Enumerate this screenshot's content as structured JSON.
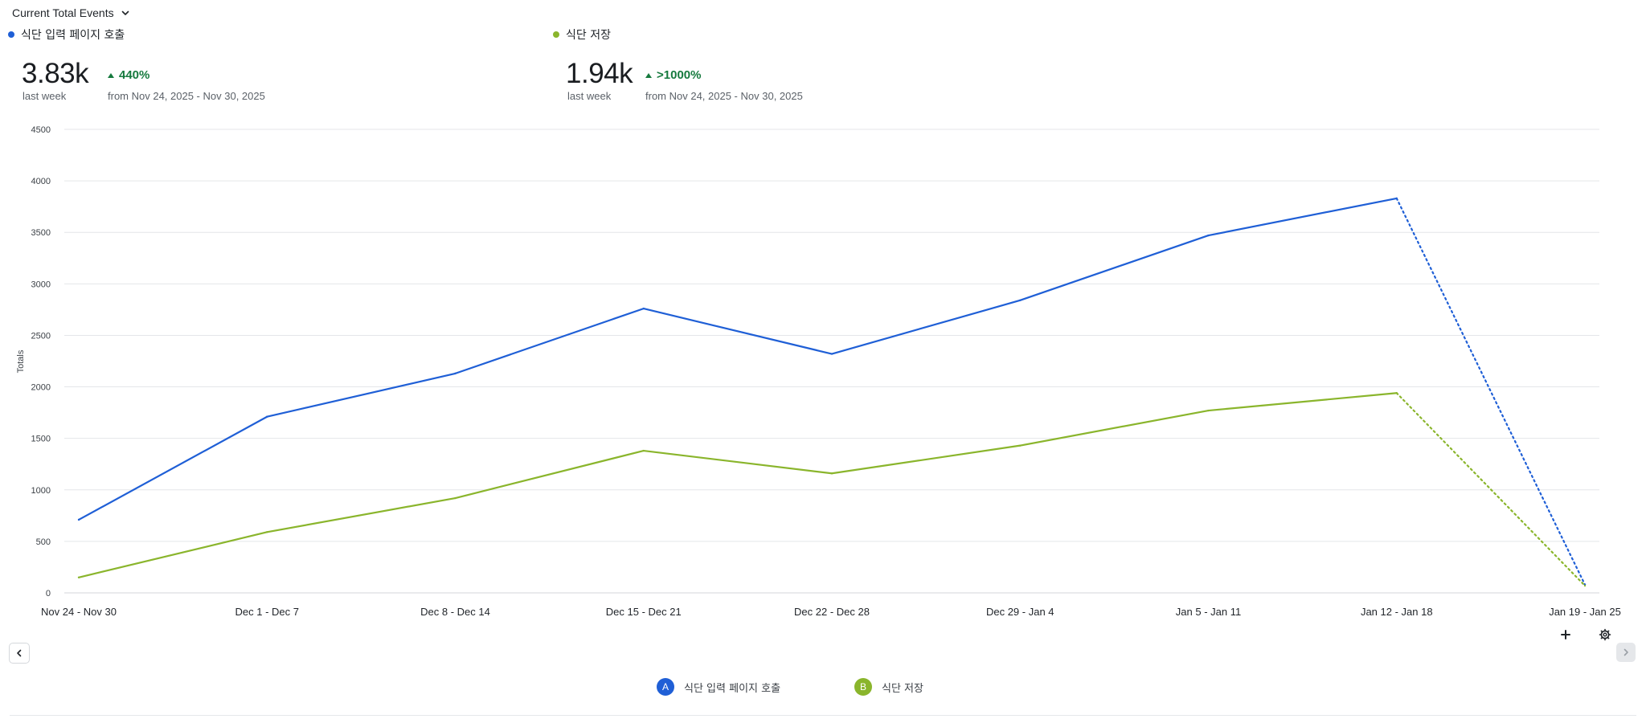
{
  "metric_selector": {
    "label": "Current Total Events"
  },
  "colors": {
    "series_a": "#1f5fd6",
    "series_b": "#8ab52c",
    "up": "#167a3e",
    "grid": "#e4e6e9"
  },
  "summary": [
    {
      "name": "식단 입력 페이지 호출",
      "value": "3.83k",
      "period": "last week",
      "change": "440%",
      "range": "from Nov 24, 2025 - Nov 30, 2025"
    },
    {
      "name": "식단 저장",
      "value": "1.94k",
      "period": "last week",
      "change": ">1000%",
      "range": "from Nov 24, 2025 - Nov 30, 2025"
    }
  ],
  "legend": [
    {
      "badge": "A",
      "label": "식단 입력 페이지 호출"
    },
    {
      "badge": "B",
      "label": "식단 저장"
    }
  ],
  "chart_data": {
    "type": "line",
    "ylabel": "Totals",
    "ylim": [
      0,
      4500
    ],
    "yticks": [
      0,
      500,
      1000,
      1500,
      2000,
      2500,
      3000,
      3500,
      4000,
      4500
    ],
    "categories": [
      "Nov 24 - Nov 30",
      "Dec 1 - Dec 7",
      "Dec 8 - Dec 14",
      "Dec 15 - Dec 21",
      "Dec 22 - Dec 28",
      "Dec 29 - Jan 4",
      "Jan 5 - Jan 11",
      "Jan 12 - Jan 18",
      "Jan 19 - Jan 25"
    ],
    "incomplete_last_period": true,
    "grid": true,
    "series": [
      {
        "name": "식단 입력 페이지 호출",
        "values": [
          710,
          1710,
          2130,
          2760,
          2320,
          2840,
          3470,
          3830,
          80
        ]
      },
      {
        "name": "식단 저장",
        "values": [
          150,
          590,
          920,
          1380,
          1160,
          1430,
          1770,
          1940,
          70
        ]
      }
    ]
  }
}
